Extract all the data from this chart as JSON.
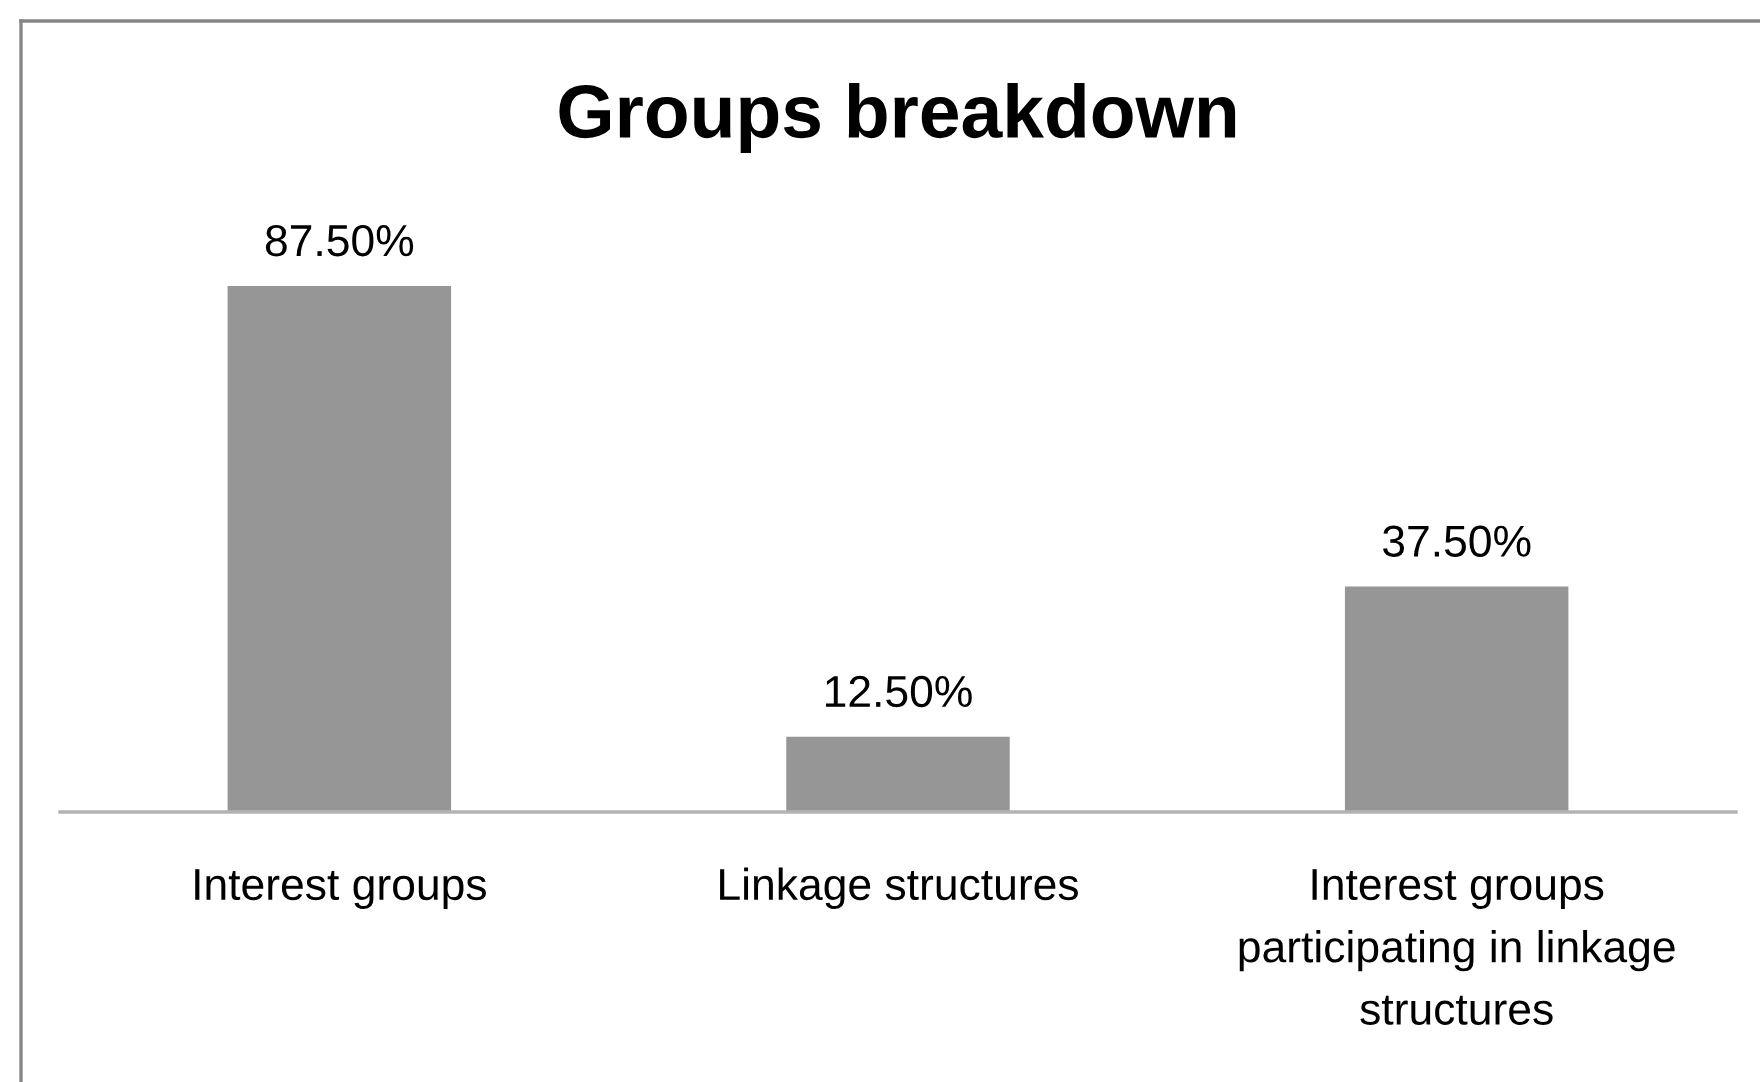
{
  "chart_data": {
    "type": "bar",
    "title": "Groups breakdown",
    "categories": [
      "Interest groups",
      "Linkage structures",
      "Interest groups participating in linkage structures"
    ],
    "values": [
      87.5,
      12.5,
      37.5
    ],
    "value_labels": [
      "87.50%",
      "12.50%",
      "37.50%"
    ],
    "color": "#969696",
    "tick_labels": "x"
  }
}
